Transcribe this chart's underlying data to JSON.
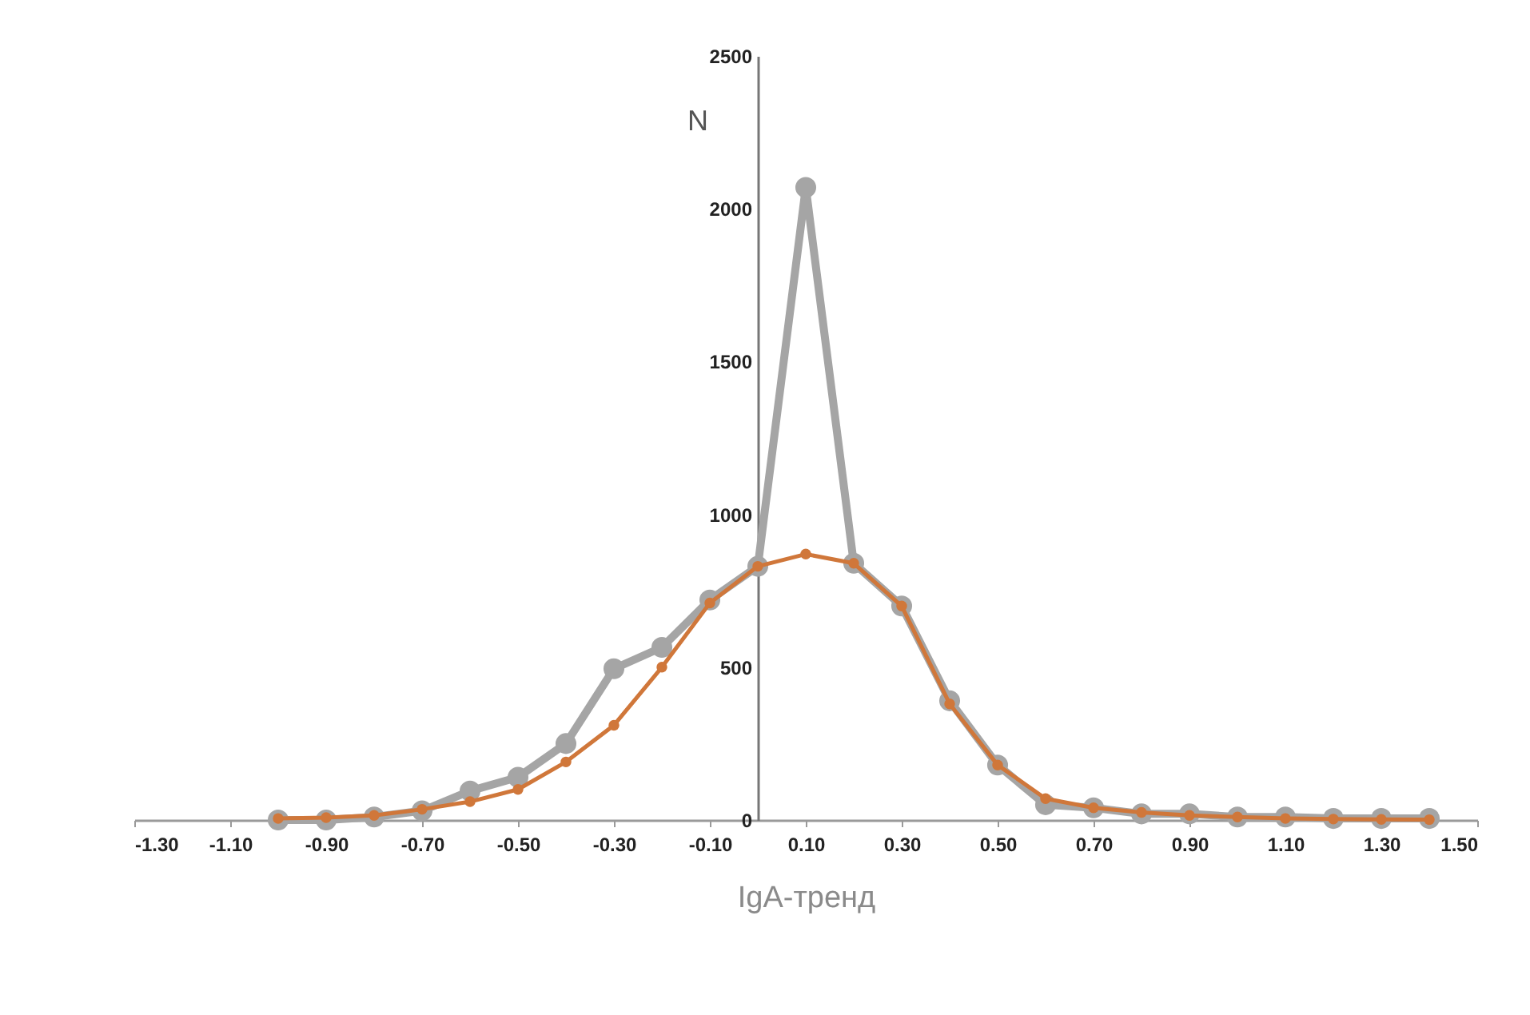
{
  "chart_data": {
    "type": "line",
    "xlabel": "IgA-тренд",
    "ylabel": "N",
    "x": [
      -1.0,
      -0.9,
      -0.8,
      -0.7,
      -0.6,
      -0.5,
      -0.4,
      -0.3,
      -0.2,
      -0.1,
      0.0,
      0.1,
      0.2,
      0.3,
      0.4,
      0.5,
      0.6,
      0.7,
      0.8,
      0.9,
      1.0,
      1.1,
      1.2,
      1.3,
      1.4
    ],
    "series": [
      {
        "color": "#a5a5a5",
        "values": [
          0,
          0,
          10,
          30,
          95,
          140,
          250,
          495,
          565,
          720,
          830,
          2070,
          840,
          700,
          390,
          180,
          50,
          40,
          20,
          20,
          10,
          10,
          5,
          5,
          5
        ]
      },
      {
        "color": "#d0773a",
        "values": [
          5,
          8,
          15,
          35,
          60,
          100,
          190,
          310,
          500,
          710,
          830,
          870,
          840,
          700,
          380,
          180,
          70,
          40,
          25,
          15,
          10,
          5,
          3,
          2,
          1
        ]
      }
    ],
    "xlim": [
      -1.3,
      1.5
    ],
    "xticks": [
      {
        "value": -1.3,
        "label": "-1.30"
      },
      {
        "value": -1.1,
        "label": "-1.10"
      },
      {
        "value": -0.9,
        "label": "-0.90"
      },
      {
        "value": -0.7,
        "label": "-0.70"
      },
      {
        "value": -0.5,
        "label": "-0.50"
      },
      {
        "value": -0.3,
        "label": "-0.30"
      },
      {
        "value": -0.1,
        "label": "-0.10"
      },
      {
        "value": 0.1,
        "label": "0.10"
      },
      {
        "value": 0.3,
        "label": "0.30"
      },
      {
        "value": 0.5,
        "label": "0.50"
      },
      {
        "value": 0.7,
        "label": "0.70"
      },
      {
        "value": 0.9,
        "label": "0.90"
      },
      {
        "value": 1.1,
        "label": "1.10"
      },
      {
        "value": 1.3,
        "label": "1.30"
      },
      {
        "value": 1.5,
        "label": "1.50"
      }
    ],
    "ylim": [
      0,
      2500
    ],
    "yticks": [
      0,
      500,
      1000,
      1500,
      2000,
      2500
    ],
    "grid": false,
    "marker": "circle",
    "line_style": "solid"
  }
}
